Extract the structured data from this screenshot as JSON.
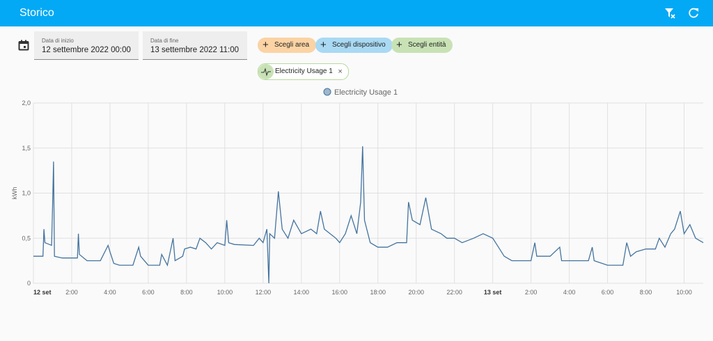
{
  "header": {
    "title": "Storico"
  },
  "filters": {
    "start_label": "Data di inizio",
    "start_value": "12 settembre 2022 00:00",
    "end_label": "Data di fine",
    "end_value": "13 settembre 2022 11:00",
    "chips": [
      "Scegli area",
      "Scegli dispositivo",
      "Scegli entità"
    ],
    "entity": "Electricity Usage 1"
  },
  "chart_data": {
    "type": "line",
    "y_label": "kWh",
    "series": [
      {
        "name": "Electricity Usage 1",
        "color": "#44739e",
        "x": [
          0,
          0.5,
          0.55,
          0.6,
          0.95,
          1.0,
          1.05,
          1.1,
          1.5,
          2.3,
          2.35,
          2.4,
          2.8,
          3.5,
          3.9,
          4.0,
          4.2,
          4.5,
          5.2,
          5.5,
          5.6,
          6.0,
          6.6,
          6.7,
          7.0,
          7.3,
          7.4,
          7.8,
          7.9,
          8.2,
          8.5,
          8.7,
          9.0,
          9.3,
          9.6,
          10.0,
          10.1,
          10.2,
          10.5,
          11.5,
          11.8,
          12.0,
          12.2,
          12.3,
          12.35,
          12.6,
          12.8,
          13.0,
          13.3,
          13.6,
          14.0,
          14.5,
          14.8,
          15.0,
          15.2,
          15.5,
          15.8,
          16.0,
          16.3,
          16.6,
          16.9,
          17.1,
          17.2,
          17.3,
          17.6,
          18.0,
          18.5,
          19.0,
          19.5,
          19.6,
          19.8,
          20.2,
          20.5,
          20.8,
          21.3,
          21.6,
          22.0,
          22.4,
          23.0,
          23.5,
          24.0,
          24.3,
          24.6,
          25.0,
          26.0,
          26.2,
          26.3,
          27.0,
          27.5,
          27.6,
          29.0,
          29.2,
          29.3,
          30.0,
          30.8,
          31.0,
          31.2,
          31.5,
          32.0,
          32.5,
          32.7,
          33.0,
          33.3,
          33.5,
          33.8,
          34.0,
          34.3,
          34.6,
          35.0
        ],
        "values": [
          0.3,
          0.3,
          0.6,
          0.45,
          0.42,
          0.85,
          1.35,
          0.3,
          0.28,
          0.28,
          0.55,
          0.32,
          0.25,
          0.25,
          0.42,
          0.35,
          0.22,
          0.2,
          0.2,
          0.4,
          0.3,
          0.2,
          0.2,
          0.32,
          0.2,
          0.5,
          0.25,
          0.3,
          0.38,
          0.4,
          0.38,
          0.5,
          0.45,
          0.38,
          0.45,
          0.42,
          0.7,
          0.45,
          0.43,
          0.42,
          0.5,
          0.45,
          0.6,
          0,
          0.55,
          0.5,
          1.02,
          0.6,
          0.5,
          0.7,
          0.55,
          0.6,
          0.55,
          0.8,
          0.6,
          0.55,
          0.5,
          0.45,
          0.55,
          0.75,
          0.55,
          0.9,
          1.52,
          0.7,
          0.45,
          0.4,
          0.4,
          0.45,
          0.45,
          0.9,
          0.7,
          0.65,
          0.95,
          0.6,
          0.55,
          0.5,
          0.5,
          0.45,
          0.5,
          0.55,
          0.5,
          0.4,
          0.3,
          0.25,
          0.25,
          0.45,
          0.3,
          0.3,
          0.4,
          0.25,
          0.25,
          0.4,
          0.25,
          0.2,
          0.2,
          0.45,
          0.3,
          0.35,
          0.38,
          0.38,
          0.5,
          0.4,
          0.55,
          0.6,
          0.8,
          0.55,
          0.65,
          0.5,
          0.45
        ]
      }
    ],
    "xlim": [
      0,
      35
    ],
    "xticks": [
      {
        "value": 0,
        "label": "12 set"
      },
      {
        "value": 2,
        "label": "2:00"
      },
      {
        "value": 4,
        "label": "4:00"
      },
      {
        "value": 6,
        "label": "6:00"
      },
      {
        "value": 8,
        "label": "8:00"
      },
      {
        "value": 10,
        "label": "10:00"
      },
      {
        "value": 12,
        "label": "12:00"
      },
      {
        "value": 14,
        "label": "14:00"
      },
      {
        "value": 16,
        "label": "16:00"
      },
      {
        "value": 18,
        "label": "18:00"
      },
      {
        "value": 20,
        "label": "20:00"
      },
      {
        "value": 22,
        "label": "22:00"
      },
      {
        "value": 24,
        "label": "13 set"
      },
      {
        "value": 26,
        "label": "2:00"
      },
      {
        "value": 28,
        "label": "4:00"
      },
      {
        "value": 30,
        "label": "6:00"
      },
      {
        "value": 32,
        "label": "8:00"
      },
      {
        "value": 34,
        "label": "10:00"
      }
    ],
    "ylim": [
      0,
      2
    ],
    "yticks": [
      0,
      {
        "value": 0.5,
        "label": "0,5"
      },
      {
        "value": 1,
        "label": "1,0"
      },
      {
        "value": 1.5,
        "label": "1,5"
      },
      {
        "value": 2,
        "label": "2,0"
      }
    ],
    "grid": true
  }
}
